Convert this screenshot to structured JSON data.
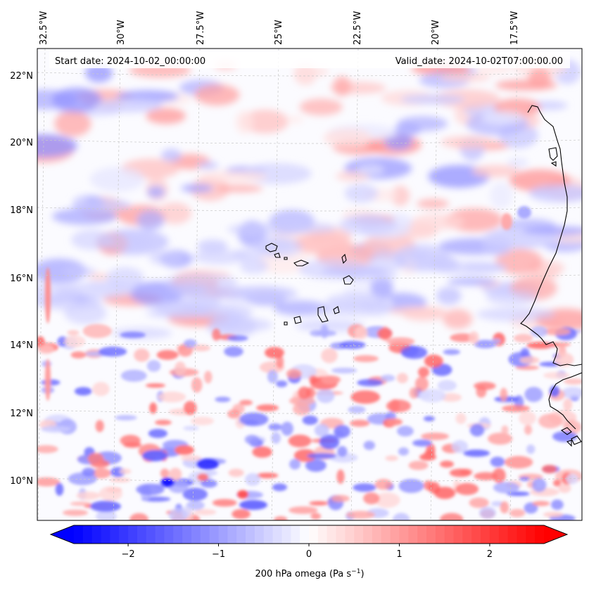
{
  "map": {
    "start_label": "Start date: 2024-10-02_00:00:00",
    "valid_label": "Valid_date: 2024-10-02T07:00:00.00",
    "lon_labels": [
      "32.5°W",
      "30°W",
      "27.5°W",
      "25°W",
      "22.5°W",
      "20°W",
      "17.5°W"
    ],
    "lat_labels": [
      "22°N",
      "20°N",
      "18°N",
      "16°N",
      "14°N",
      "12°N",
      "10°N"
    ]
  },
  "colorbar": {
    "variable": "200 hPa omega",
    "unit_prefix": "(Pa s",
    "unit_exp": "−1",
    "unit_suffix": ")",
    "min": -2.6,
    "max": 2.6,
    "ticks": [
      "−2",
      "−1",
      "0",
      "1",
      "2"
    ],
    "tick_values": [
      -2,
      -1,
      0,
      1,
      2
    ],
    "negative_color": "#0000ff",
    "positive_color": "#ff0000"
  }
}
